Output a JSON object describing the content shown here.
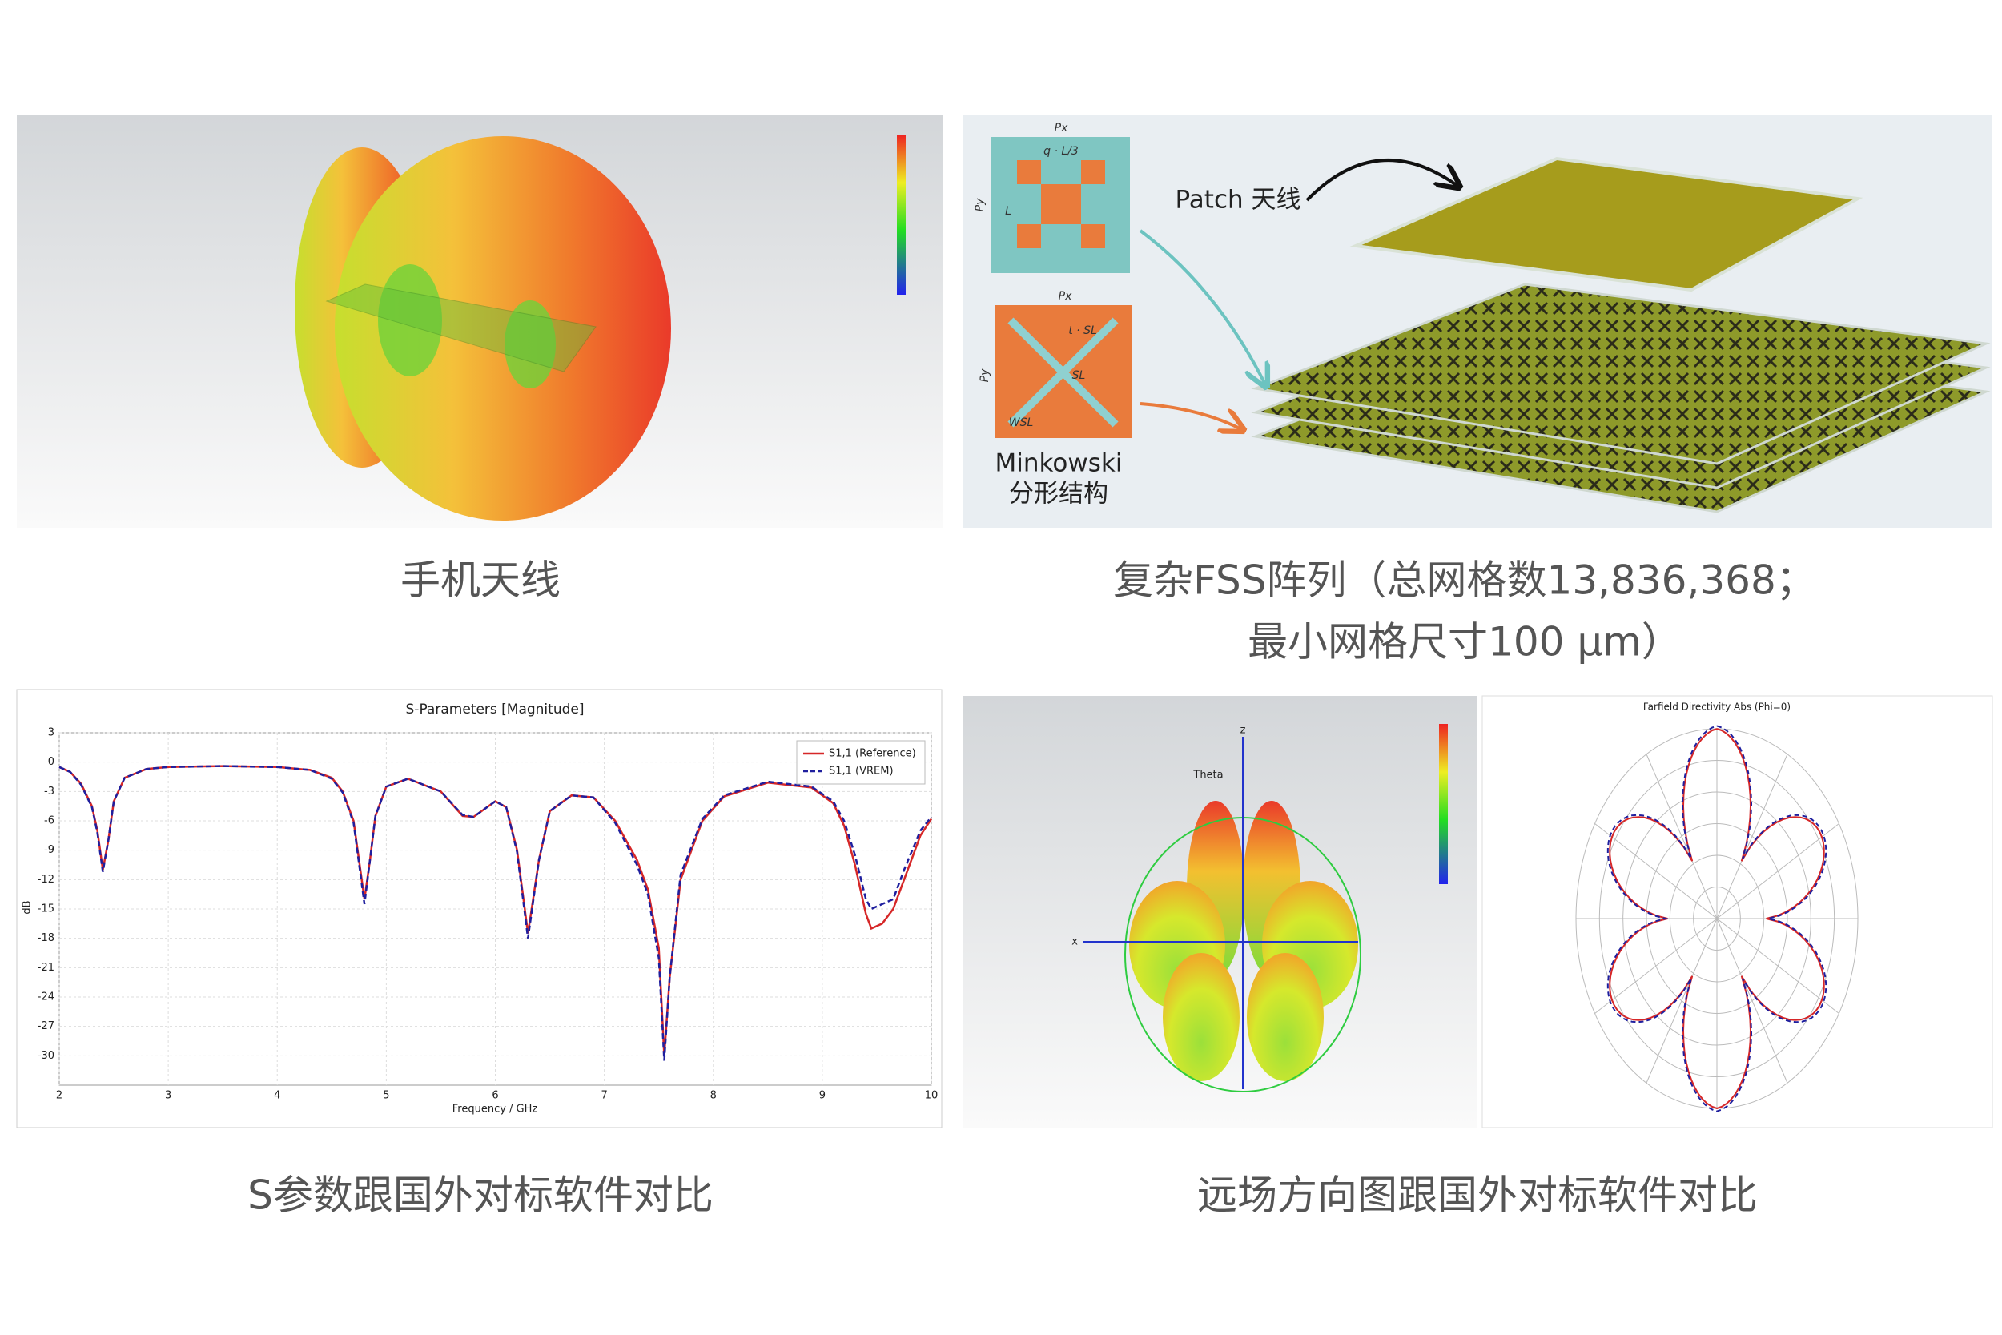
{
  "panels": [
    {
      "caption": "手机天线"
    },
    {
      "caption_lines": [
        "复杂FSS阵列（总网格数13,836,368；",
        "最小网格尺寸100 μm）"
      ],
      "labels": {
        "patch": "Patch 天线",
        "minkowski": [
          "Minkowski",
          "分形结构"
        ],
        "px_top": "Px",
        "py_top": "Py",
        "q": "q · L/3",
        "l": "L",
        "px_bottom": "Px",
        "py_bottom": "Py",
        "t": "t · SL",
        "sl": "SL",
        "wsl": "WSL"
      }
    },
    {
      "caption": "S参数跟国外对标软件对比"
    },
    {
      "caption": "远场方向图跟国外对标软件对比",
      "polar_title": "Farfield Directivity Abs (Phi=0)",
      "theta": "Theta",
      "axis_x": "x",
      "axis_z": "z"
    }
  ],
  "chart_data": {
    "type": "line",
    "title": "S-Parameters [Magnitude]",
    "x_label": "Frequency / GHz",
    "y_label": "dB",
    "x": [
      2,
      2.1,
      2.2,
      2.3,
      2.35,
      2.4,
      2.45,
      2.5,
      2.6,
      2.8,
      3,
      3.5,
      4,
      4.3,
      4.5,
      4.6,
      4.7,
      4.8,
      4.85,
      4.9,
      5,
      5.2,
      5.5,
      5.7,
      5.8,
      6,
      6.1,
      6.2,
      6.3,
      6.4,
      6.5,
      6.7,
      6.9,
      7.1,
      7.3,
      7.4,
      7.5,
      7.55,
      7.6,
      7.7,
      7.9,
      8.1,
      8.5,
      8.9,
      9.1,
      9.2,
      9.3,
      9.4,
      9.45,
      9.55,
      9.65,
      9.75,
      9.9,
      10
    ],
    "series": [
      {
        "name": "S1,1 (Reference)",
        "color": "#d62728",
        "dash": false,
        "values": [
          -0.5,
          -1,
          -2.2,
          -4.5,
          -7,
          -11,
          -8,
          -4,
          -1.6,
          -0.7,
          -0.5,
          -0.4,
          -0.5,
          -0.8,
          -1.6,
          -3,
          -6,
          -14,
          -10,
          -5.5,
          -2.5,
          -1.7,
          -3,
          -5.5,
          -5.6,
          -4,
          -4.6,
          -9,
          -17.5,
          -10,
          -5,
          -3.4,
          -3.6,
          -6,
          -10,
          -13,
          -19,
          -30,
          -22,
          -12,
          -6,
          -3.5,
          -2.1,
          -2.6,
          -4.2,
          -6.5,
          -10.5,
          -15.5,
          -17,
          -16.5,
          -15,
          -12,
          -7.5,
          -5.8
        ]
      },
      {
        "name": "S1,1 (VREM)",
        "color": "#1f1f9e",
        "dash": true,
        "values": [
          -0.5,
          -1,
          -2.3,
          -4.6,
          -7.2,
          -11.2,
          -8,
          -4,
          -1.6,
          -0.7,
          -0.5,
          -0.4,
          -0.5,
          -0.8,
          -1.7,
          -3.1,
          -6.2,
          -14.5,
          -10,
          -5.5,
          -2.5,
          -1.7,
          -3,
          -5.4,
          -5.6,
          -4,
          -4.6,
          -9.2,
          -18,
          -10,
          -5,
          -3.4,
          -3.6,
          -6.2,
          -10.5,
          -13.5,
          -20,
          -30.5,
          -22,
          -11.5,
          -5.8,
          -3.4,
          -2,
          -2.5,
          -4,
          -6,
          -9.5,
          -14,
          -15,
          -14.5,
          -14,
          -11,
          -7,
          -5.6
        ]
      }
    ],
    "xlim": [
      2,
      10
    ],
    "xticks": [
      2,
      3,
      4,
      5,
      6,
      7,
      8,
      9,
      10
    ],
    "ylim": [
      -33,
      3
    ],
    "yticks": [
      3,
      0,
      -3,
      -6,
      -9,
      -12,
      -15,
      -18,
      -21,
      -24,
      -27,
      -30
    ],
    "grid": true,
    "legend": "top-right"
  }
}
